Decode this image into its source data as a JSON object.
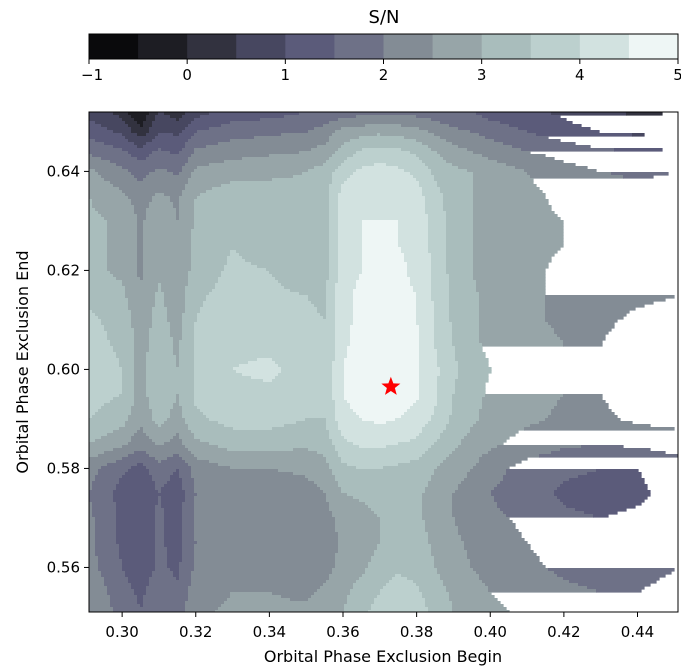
{
  "chart_data": {
    "type": "heatmap",
    "subtype": "filled-contour",
    "title": "",
    "xlabel": "Orbital Phase Exclusion Begin",
    "ylabel": "Orbital Phase Exclusion End",
    "xlim": [
      0.291,
      0.451
    ],
    "ylim": [
      0.551,
      0.652
    ],
    "xticks": [
      0.3,
      0.32,
      0.34,
      0.36,
      0.38,
      0.4,
      0.42,
      0.44
    ],
    "xtick_labels": [
      "0.30",
      "0.32",
      "0.34",
      "0.36",
      "0.38",
      "0.40",
      "0.42",
      "0.44"
    ],
    "yticks": [
      0.56,
      0.58,
      0.6,
      0.62,
      0.64
    ],
    "ytick_labels": [
      "0.56",
      "0.58",
      "0.60",
      "0.62",
      "0.64"
    ],
    "colorbar": {
      "label": "S/N",
      "location": "top",
      "range": [
        -1,
        5
      ],
      "levels": [
        -1,
        -0.5,
        0,
        0.5,
        1,
        1.5,
        2,
        2.5,
        3,
        3.5,
        4,
        4.5,
        5
      ],
      "ticks": [
        -1,
        0,
        1,
        2,
        3,
        4,
        5
      ],
      "tick_labels": [
        "−1",
        "0",
        "1",
        "2",
        "3",
        "4",
        "5"
      ],
      "colors": [
        "#0a0a0c",
        "#1d1d23",
        "#32323f",
        "#474760",
        "#5b5b7a",
        "#6e7187",
        "#838c95",
        "#97a5a8",
        "#a9bdbc",
        "#bcd0ce",
        "#d2e2e0",
        "#eef6f5"
      ]
    },
    "x": [
      0.291,
      0.3,
      0.305,
      0.31,
      0.315,
      0.32,
      0.33,
      0.34,
      0.35,
      0.355,
      0.36,
      0.365,
      0.37,
      0.375,
      0.38,
      0.385,
      0.39,
      0.395,
      0.4,
      0.41,
      0.42,
      0.43,
      0.44,
      0.451
    ],
    "y": [
      0.652,
      0.648,
      0.644,
      0.64,
      0.635,
      0.63,
      0.625,
      0.62,
      0.615,
      0.61,
      0.605,
      0.6,
      0.595,
      0.59,
      0.585,
      0.58,
      0.575,
      0.57,
      0.565,
      0.56,
      0.555,
      0.551
    ],
    "z": [
      [
        0.8,
        0.3,
        -0.6,
        0.6,
        0.2,
        0.8,
        1.2,
        1.3,
        1.5,
        1.6,
        1.7,
        1.8,
        1.9,
        1.9,
        1.8,
        1.7,
        1.6,
        1.5,
        1.3,
        1.1,
        0.9,
        0.6,
        0.4,
        0.5
      ],
      [
        1.3,
        0.9,
        0.2,
        1.0,
        0.9,
        1.5,
        1.8,
        1.9,
        2.0,
        2.2,
        2.7,
        2.8,
        2.9,
        2.8,
        2.7,
        2.4,
        2.1,
        2.0,
        1.8,
        1.5,
        1.2,
        1.0,
        0.9,
        1.0
      ],
      [
        1.9,
        1.6,
        1.2,
        1.6,
        1.4,
        2.1,
        2.3,
        2.4,
        2.5,
        2.7,
        3.2,
        3.6,
        3.7,
        3.6,
        3.4,
        3.0,
        2.7,
        2.5,
        2.3,
        2.0,
        1.8,
        1.6,
        1.5,
        1.6
      ],
      [
        2.6,
        2.1,
        1.8,
        2.1,
        1.9,
        2.6,
        2.8,
        2.9,
        3.0,
        3.2,
        3.8,
        4.1,
        4.2,
        4.1,
        3.9,
        3.4,
        3.1,
        3.0,
        2.8,
        2.5,
        2.2,
        2.0,
        1.9,
        2.0
      ],
      [
        3.0,
        2.6,
        2.3,
        2.6,
        2.4,
        3.0,
        3.3,
        3.2,
        3.1,
        3.3,
        4.2,
        4.4,
        4.4,
        4.4,
        4.2,
        3.7,
        3.2,
        3.0,
        2.9,
        2.6,
        2.4,
        2.3,
        2.2,
        2.3
      ],
      [
        3.1,
        2.9,
        2.4,
        2.9,
        2.5,
        3.1,
        3.4,
        3.2,
        3.0,
        3.3,
        4.3,
        4.5,
        4.5,
        4.5,
        4.3,
        3.8,
        3.3,
        3.0,
        2.9,
        2.6,
        2.5,
        2.4,
        2.3,
        2.4
      ],
      [
        3.1,
        2.9,
        2.4,
        2.9,
        2.6,
        3.1,
        3.5,
        3.2,
        3.0,
        3.3,
        4.3,
        4.5,
        4.6,
        4.5,
        4.4,
        3.8,
        3.3,
        3.0,
        2.9,
        2.6,
        2.5,
        2.4,
        2.3,
        2.4
      ],
      [
        3.1,
        2.9,
        2.4,
        2.9,
        2.6,
        3.2,
        3.6,
        3.5,
        3.2,
        3.3,
        4.3,
        4.5,
        4.6,
        4.6,
        4.4,
        3.9,
        3.3,
        3.0,
        2.8,
        2.6,
        2.4,
        2.3,
        2.2,
        2.3
      ],
      [
        3.4,
        3.1,
        2.6,
        3.1,
        2.7,
        3.4,
        3.7,
        3.6,
        3.5,
        3.4,
        4.4,
        4.6,
        4.6,
        4.6,
        4.5,
        3.9,
        3.4,
        3.1,
        2.8,
        2.6,
        2.4,
        2.3,
        2.4,
        2.5
      ],
      [
        3.6,
        3.3,
        2.7,
        3.2,
        2.8,
        3.5,
        3.8,
        3.8,
        3.6,
        3.5,
        4.4,
        4.6,
        4.7,
        4.7,
        4.5,
        4.0,
        3.4,
        3.1,
        2.8,
        2.6,
        2.4,
        2.4,
        2.6,
        2.7
      ],
      [
        3.7,
        3.4,
        2.8,
        3.3,
        2.9,
        3.6,
        3.9,
        3.9,
        3.7,
        3.5,
        4.4,
        4.7,
        4.8,
        4.8,
        4.6,
        4.0,
        3.5,
        3.1,
        2.9,
        2.7,
        2.5,
        2.5,
        2.8,
        2.9
      ],
      [
        3.8,
        3.5,
        2.8,
        3.4,
        3.0,
        3.6,
        4.0,
        4.1,
        3.8,
        3.6,
        4.5,
        4.8,
        4.9,
        4.8,
        4.6,
        4.1,
        3.6,
        3.2,
        3.0,
        2.7,
        2.5,
        2.6,
        2.9,
        3.0
      ],
      [
        3.7,
        3.5,
        2.8,
        3.4,
        3.0,
        3.6,
        3.9,
        3.9,
        3.7,
        3.6,
        4.5,
        4.8,
        4.9,
        4.8,
        4.6,
        4.1,
        3.5,
        3.2,
        2.9,
        2.7,
        2.5,
        2.5,
        2.8,
        2.9
      ],
      [
        3.5,
        3.2,
        2.6,
        3.2,
        2.8,
        3.4,
        3.7,
        3.7,
        3.5,
        3.5,
        4.3,
        4.5,
        4.6,
        4.5,
        4.3,
        3.9,
        3.4,
        3.1,
        2.8,
        2.6,
        2.4,
        2.4,
        2.6,
        2.7
      ],
      [
        3.0,
        2.6,
        2.2,
        2.6,
        2.3,
        2.9,
        3.2,
        3.2,
        3.1,
        3.2,
        3.9,
        4.1,
        4.1,
        4.0,
        3.9,
        3.5,
        3.1,
        2.8,
        2.6,
        2.3,
        2.1,
        2.0,
        2.1,
        2.2
      ],
      [
        2.2,
        1.6,
        1.3,
        1.8,
        1.5,
        2.2,
        2.5,
        2.5,
        2.6,
        2.8,
        3.4,
        3.5,
        3.5,
        3.4,
        3.3,
        3.0,
        2.7,
        2.5,
        2.2,
        1.8,
        1.6,
        1.5,
        1.5,
        1.8
      ],
      [
        2.0,
        1.3,
        1.1,
        1.5,
        1.2,
        2.0,
        2.3,
        2.2,
        2.3,
        2.5,
        3.0,
        3.1,
        3.2,
        3.2,
        3.1,
        2.8,
        2.5,
        2.3,
        2.0,
        1.7,
        1.4,
        1.3,
        1.4,
        1.7
      ],
      [
        2.1,
        1.4,
        1.2,
        1.6,
        1.3,
        2.1,
        2.3,
        2.1,
        2.1,
        2.3,
        2.7,
        2.8,
        3.0,
        3.2,
        3.1,
        2.8,
        2.5,
        2.3,
        2.1,
        1.9,
        1.6,
        1.5,
        1.6,
        1.8
      ],
      [
        2.1,
        1.4,
        1.2,
        1.6,
        1.3,
        2.0,
        2.3,
        2.1,
        2.0,
        2.2,
        2.6,
        2.8,
        3.0,
        3.2,
        3.2,
        2.9,
        2.6,
        2.4,
        2.2,
        2.0,
        1.8,
        1.7,
        1.7,
        1.9
      ],
      [
        2.2,
        1.5,
        1.2,
        1.6,
        1.4,
        2.1,
        2.4,
        2.2,
        2.1,
        2.3,
        2.7,
        2.9,
        3.2,
        3.4,
        3.3,
        3.0,
        2.7,
        2.5,
        2.3,
        2.1,
        1.9,
        1.8,
        1.8,
        2.0
      ],
      [
        2.4,
        1.7,
        1.4,
        1.8,
        1.6,
        2.3,
        2.5,
        2.5,
        2.4,
        2.6,
        2.9,
        3.2,
        3.5,
        3.8,
        3.6,
        3.2,
        2.9,
        2.7,
        2.5,
        2.3,
        2.1,
        2.0,
        2.0,
        2.2
      ],
      [
        2.5,
        1.8,
        1.5,
        1.9,
        1.7,
        2.4,
        2.6,
        2.6,
        2.6,
        2.7,
        3.0,
        3.4,
        3.7,
        4.0,
        3.8,
        3.3,
        3.0,
        2.8,
        2.6,
        2.4,
        2.2,
        2.1,
        2.1,
        2.3
      ]
    ],
    "marker": {
      "symbol": "star",
      "color": "#ff0000",
      "x": 0.373,
      "y": 0.5965
    }
  }
}
